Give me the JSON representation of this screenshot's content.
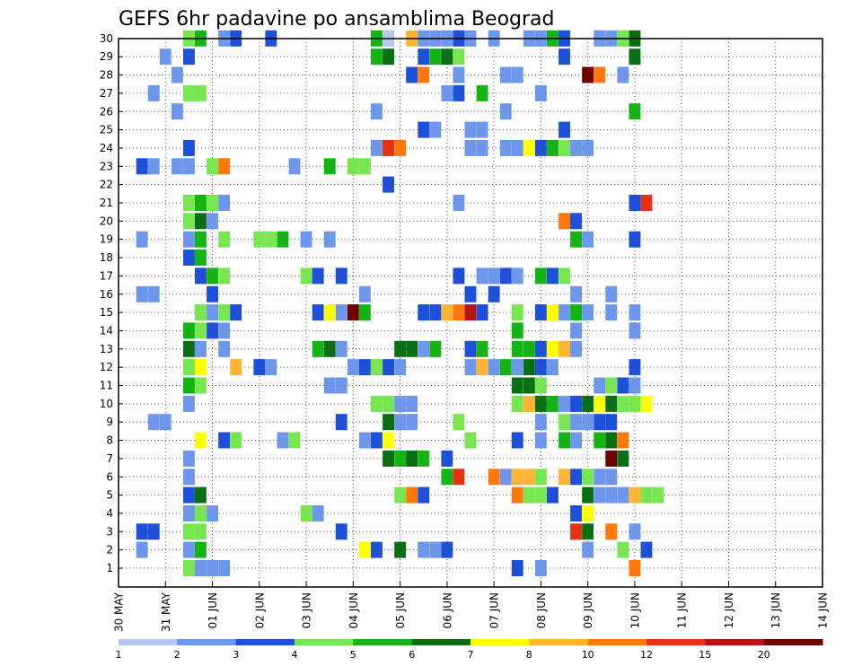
{
  "chart_data": {
    "type": "heatmap",
    "title": "GEFS 6hr padavine po ansamblima Beograd",
    "xlabel": "",
    "ylabel": "",
    "y_ticks": [
      "1",
      "2",
      "3",
      "4",
      "5",
      "6",
      "7",
      "8",
      "9",
      "10",
      "11",
      "12",
      "13",
      "14",
      "15",
      "16",
      "17",
      "18",
      "19",
      "20",
      "21",
      "22",
      "23",
      "24",
      "25",
      "26",
      "27",
      "28",
      "29",
      "30"
    ],
    "x_tick_labels": [
      "30 MAY",
      "31 MAY",
      "01 JUN",
      "02 JUN",
      "03 JUN",
      "04 JUN",
      "05 JUN",
      "06 JUN",
      "07 JUN",
      "08 JUN",
      "09 JUN",
      "10 JUN",
      "11 JUN",
      "12 JUN",
      "13 JUN",
      "14 JUN"
    ],
    "x_steps_per_day": 4,
    "x_total_steps": 61,
    "ylim": [
      1,
      30
    ],
    "grid": "dotted",
    "colorbar": {
      "labels": [
        "1",
        "2",
        "3",
        "4",
        "5",
        "6",
        "7",
        "8",
        "10",
        "12",
        "15",
        "20"
      ],
      "colors": [
        "#b4c8f0",
        "#6e96eb",
        "#1e50d7",
        "#78e650",
        "#14b414",
        "#0a6e14",
        "#ffff00",
        "#ffb432",
        "#ff780a",
        "#e63214",
        "#b41414",
        "#6e0000"
      ]
    },
    "cells": [
      [
        3,
        30,
        3
      ],
      [
        4,
        30,
        4
      ],
      [
        6,
        30,
        1
      ],
      [
        7,
        30,
        2
      ],
      [
        10,
        30,
        2
      ],
      [
        19,
        30,
        4
      ],
      [
        20,
        30,
        0
      ],
      [
        22,
        30,
        7
      ],
      [
        23,
        30,
        1
      ],
      [
        24,
        30,
        1
      ],
      [
        25,
        30,
        1
      ],
      [
        26,
        30,
        2
      ],
      [
        27,
        30,
        1
      ],
      [
        29,
        30,
        1
      ],
      [
        32,
        30,
        1
      ],
      [
        33,
        30,
        1
      ],
      [
        34,
        30,
        4
      ],
      [
        35,
        30,
        2
      ],
      [
        38,
        30,
        1
      ],
      [
        39,
        30,
        1
      ],
      [
        40,
        30,
        3
      ],
      [
        41,
        30,
        5
      ],
      [
        1,
        29,
        1
      ],
      [
        3,
        29,
        2
      ],
      [
        19,
        29,
        4
      ],
      [
        20,
        29,
        5
      ],
      [
        23,
        29,
        2
      ],
      [
        24,
        29,
        4
      ],
      [
        25,
        29,
        5
      ],
      [
        26,
        29,
        3
      ],
      [
        35,
        29,
        2
      ],
      [
        41,
        29,
        5
      ],
      [
        2,
        28,
        1
      ],
      [
        22,
        28,
        2
      ],
      [
        23,
        28,
        8
      ],
      [
        26,
        28,
        1
      ],
      [
        30,
        28,
        1
      ],
      [
        31,
        28,
        1
      ],
      [
        37,
        28,
        11
      ],
      [
        38,
        28,
        8
      ],
      [
        40,
        28,
        1
      ],
      [
        0,
        27,
        1
      ],
      [
        3,
        27,
        3
      ],
      [
        4,
        27,
        3
      ],
      [
        25,
        27,
        1
      ],
      [
        26,
        27,
        2
      ],
      [
        28,
        27,
        4
      ],
      [
        33,
        27,
        1
      ],
      [
        2,
        26,
        1
      ],
      [
        19,
        26,
        1
      ],
      [
        30,
        26,
        1
      ],
      [
        41,
        26,
        4
      ],
      [
        23,
        25,
        2
      ],
      [
        24,
        25,
        1
      ],
      [
        27,
        25,
        1
      ],
      [
        28,
        25,
        1
      ],
      [
        35,
        25,
        2
      ],
      [
        3,
        24,
        2
      ],
      [
        19,
        24,
        1
      ],
      [
        20,
        24,
        9
      ],
      [
        21,
        24,
        8
      ],
      [
        27,
        24,
        1
      ],
      [
        28,
        24,
        1
      ],
      [
        30,
        24,
        1
      ],
      [
        31,
        24,
        1
      ],
      [
        32,
        24,
        6
      ],
      [
        33,
        24,
        2
      ],
      [
        34,
        24,
        4
      ],
      [
        35,
        24,
        3
      ],
      [
        36,
        24,
        1
      ],
      [
        37,
        24,
        1
      ],
      [
        -1,
        23,
        2
      ],
      [
        0,
        23,
        1
      ],
      [
        2,
        23,
        1
      ],
      [
        3,
        23,
        1
      ],
      [
        5,
        23,
        3
      ],
      [
        6,
        23,
        8
      ],
      [
        12,
        23,
        1
      ],
      [
        15,
        23,
        4
      ],
      [
        17,
        23,
        3
      ],
      [
        18,
        23,
        3
      ],
      [
        20,
        22,
        2
      ],
      [
        3,
        21,
        3
      ],
      [
        4,
        21,
        4
      ],
      [
        5,
        21,
        3
      ],
      [
        6,
        21,
        1
      ],
      [
        26,
        21,
        1
      ],
      [
        41,
        21,
        2
      ],
      [
        42,
        21,
        9
      ],
      [
        3,
        20,
        3
      ],
      [
        4,
        20,
        5
      ],
      [
        5,
        20,
        1
      ],
      [
        35,
        20,
        8
      ],
      [
        36,
        20,
        2
      ],
      [
        -1,
        19,
        1
      ],
      [
        3,
        19,
        1
      ],
      [
        4,
        19,
        4
      ],
      [
        6,
        19,
        3
      ],
      [
        9,
        19,
        3
      ],
      [
        10,
        19,
        3
      ],
      [
        11,
        19,
        4
      ],
      [
        13,
        19,
        1
      ],
      [
        15,
        19,
        1
      ],
      [
        36,
        19,
        4
      ],
      [
        37,
        19,
        1
      ],
      [
        41,
        19,
        2
      ],
      [
        3,
        18,
        2
      ],
      [
        4,
        18,
        4
      ],
      [
        4,
        17,
        2
      ],
      [
        5,
        17,
        4
      ],
      [
        6,
        17,
        3
      ],
      [
        13,
        17,
        3
      ],
      [
        14,
        17,
        2
      ],
      [
        16,
        17,
        2
      ],
      [
        26,
        17,
        2
      ],
      [
        28,
        17,
        1
      ],
      [
        29,
        17,
        1
      ],
      [
        30,
        17,
        2
      ],
      [
        31,
        17,
        1
      ],
      [
        33,
        17,
        4
      ],
      [
        34,
        17,
        2
      ],
      [
        35,
        17,
        3
      ],
      [
        -1,
        16,
        1
      ],
      [
        0,
        16,
        1
      ],
      [
        5,
        16,
        2
      ],
      [
        18,
        16,
        1
      ],
      [
        27,
        16,
        2
      ],
      [
        29,
        16,
        2
      ],
      [
        36,
        16,
        1
      ],
      [
        39,
        16,
        1
      ],
      [
        4,
        15,
        3
      ],
      [
        5,
        15,
        1
      ],
      [
        6,
        15,
        3
      ],
      [
        7,
        15,
        2
      ],
      [
        14,
        15,
        2
      ],
      [
        15,
        15,
        6
      ],
      [
        16,
        15,
        1
      ],
      [
        17,
        15,
        11
      ],
      [
        18,
        15,
        4
      ],
      [
        23,
        15,
        2
      ],
      [
        24,
        15,
        2
      ],
      [
        25,
        15,
        7
      ],
      [
        26,
        15,
        8
      ],
      [
        27,
        15,
        10
      ],
      [
        28,
        15,
        2
      ],
      [
        31,
        15,
        3
      ],
      [
        33,
        15,
        2
      ],
      [
        34,
        15,
        6
      ],
      [
        35,
        15,
        1
      ],
      [
        36,
        15,
        4
      ],
      [
        37,
        15,
        1
      ],
      [
        39,
        15,
        1
      ],
      [
        41,
        15,
        1
      ],
      [
        3,
        14,
        4
      ],
      [
        4,
        14,
        3
      ],
      [
        5,
        14,
        2
      ],
      [
        6,
        14,
        1
      ],
      [
        31,
        14,
        4
      ],
      [
        36,
        14,
        1
      ],
      [
        41,
        14,
        1
      ],
      [
        3,
        13,
        5
      ],
      [
        4,
        13,
        1
      ],
      [
        6,
        13,
        1
      ],
      [
        14,
        13,
        4
      ],
      [
        15,
        13,
        5
      ],
      [
        16,
        13,
        1
      ],
      [
        21,
        13,
        5
      ],
      [
        22,
        13,
        5
      ],
      [
        23,
        13,
        1
      ],
      [
        24,
        13,
        4
      ],
      [
        27,
        13,
        2
      ],
      [
        28,
        13,
        4
      ],
      [
        31,
        13,
        4
      ],
      [
        32,
        13,
        4
      ],
      [
        33,
        13,
        2
      ],
      [
        34,
        13,
        6
      ],
      [
        35,
        13,
        7
      ],
      [
        36,
        13,
        1
      ],
      [
        3,
        12,
        3
      ],
      [
        4,
        12,
        6
      ],
      [
        7,
        12,
        7
      ],
      [
        9,
        12,
        2
      ],
      [
        10,
        12,
        1
      ],
      [
        17,
        12,
        1
      ],
      [
        18,
        12,
        2
      ],
      [
        19,
        12,
        3
      ],
      [
        20,
        12,
        2
      ],
      [
        21,
        12,
        1
      ],
      [
        27,
        12,
        1
      ],
      [
        28,
        12,
        7
      ],
      [
        29,
        12,
        1
      ],
      [
        30,
        12,
        4
      ],
      [
        31,
        12,
        1
      ],
      [
        32,
        12,
        5
      ],
      [
        33,
        12,
        2
      ],
      [
        34,
        12,
        1
      ],
      [
        41,
        12,
        2
      ],
      [
        3,
        11,
        4
      ],
      [
        4,
        11,
        3
      ],
      [
        15,
        11,
        1
      ],
      [
        16,
        11,
        1
      ],
      [
        31,
        11,
        5
      ],
      [
        32,
        11,
        5
      ],
      [
        33,
        11,
        3
      ],
      [
        38,
        11,
        1
      ],
      [
        39,
        11,
        3
      ],
      [
        40,
        11,
        2
      ],
      [
        41,
        11,
        1
      ],
      [
        3,
        10,
        1
      ],
      [
        19,
        10,
        3
      ],
      [
        20,
        10,
        3
      ],
      [
        21,
        10,
        1
      ],
      [
        22,
        10,
        1
      ],
      [
        31,
        10,
        3
      ],
      [
        32,
        10,
        7
      ],
      [
        33,
        10,
        5
      ],
      [
        34,
        10,
        4
      ],
      [
        35,
        10,
        1
      ],
      [
        36,
        10,
        2
      ],
      [
        37,
        10,
        5
      ],
      [
        38,
        10,
        6
      ],
      [
        39,
        10,
        5
      ],
      [
        40,
        10,
        3
      ],
      [
        41,
        10,
        3
      ],
      [
        42,
        10,
        6
      ],
      [
        0,
        9,
        1
      ],
      [
        1,
        9,
        1
      ],
      [
        16,
        9,
        2
      ],
      [
        20,
        9,
        5
      ],
      [
        21,
        9,
        1
      ],
      [
        22,
        9,
        1
      ],
      [
        26,
        9,
        3
      ],
      [
        33,
        9,
        1
      ],
      [
        35,
        9,
        3
      ],
      [
        36,
        9,
        1
      ],
      [
        37,
        9,
        1
      ],
      [
        38,
        9,
        2
      ],
      [
        39,
        9,
        2
      ],
      [
        4,
        8,
        6
      ],
      [
        6,
        8,
        2
      ],
      [
        7,
        8,
        3
      ],
      [
        11,
        8,
        1
      ],
      [
        12,
        8,
        3
      ],
      [
        18,
        8,
        1
      ],
      [
        19,
        8,
        2
      ],
      [
        20,
        8,
        6
      ],
      [
        27,
        8,
        3
      ],
      [
        31,
        8,
        2
      ],
      [
        33,
        8,
        1
      ],
      [
        35,
        8,
        4
      ],
      [
        36,
        8,
        1
      ],
      [
        38,
        8,
        4
      ],
      [
        39,
        8,
        5
      ],
      [
        40,
        8,
        8
      ],
      [
        3,
        7,
        1
      ],
      [
        20,
        7,
        5
      ],
      [
        21,
        7,
        4
      ],
      [
        22,
        7,
        5
      ],
      [
        23,
        7,
        4
      ],
      [
        25,
        7,
        2
      ],
      [
        39,
        7,
        11
      ],
      [
        40,
        7,
        5
      ],
      [
        3,
        6,
        1
      ],
      [
        25,
        6,
        4
      ],
      [
        26,
        6,
        9
      ],
      [
        29,
        6,
        8
      ],
      [
        30,
        6,
        1
      ],
      [
        31,
        6,
        7
      ],
      [
        32,
        6,
        7
      ],
      [
        33,
        6,
        3
      ],
      [
        35,
        6,
        7
      ],
      [
        36,
        6,
        2
      ],
      [
        37,
        6,
        3
      ],
      [
        38,
        6,
        1
      ],
      [
        39,
        6,
        1
      ],
      [
        3,
        5,
        2
      ],
      [
        4,
        5,
        5
      ],
      [
        21,
        5,
        3
      ],
      [
        22,
        5,
        8
      ],
      [
        23,
        5,
        2
      ],
      [
        31,
        5,
        8
      ],
      [
        32,
        5,
        3
      ],
      [
        33,
        5,
        3
      ],
      [
        34,
        5,
        2
      ],
      [
        37,
        5,
        5
      ],
      [
        38,
        5,
        1
      ],
      [
        39,
        5,
        1
      ],
      [
        40,
        5,
        1
      ],
      [
        41,
        5,
        7
      ],
      [
        42,
        5,
        3
      ],
      [
        43,
        5,
        3
      ],
      [
        3,
        4,
        1
      ],
      [
        4,
        4,
        3
      ],
      [
        5,
        4,
        1
      ],
      [
        13,
        4,
        3
      ],
      [
        14,
        4,
        1
      ],
      [
        36,
        4,
        2
      ],
      [
        37,
        4,
        6
      ],
      [
        -1,
        3,
        2
      ],
      [
        0,
        3,
        2
      ],
      [
        3,
        3,
        3
      ],
      [
        4,
        3,
        3
      ],
      [
        16,
        3,
        2
      ],
      [
        36,
        3,
        9
      ],
      [
        37,
        3,
        5
      ],
      [
        39,
        3,
        8
      ],
      [
        41,
        3,
        1
      ],
      [
        -1,
        2,
        1
      ],
      [
        3,
        2,
        1
      ],
      [
        4,
        2,
        4
      ],
      [
        18,
        2,
        6
      ],
      [
        19,
        2,
        2
      ],
      [
        21,
        2,
        5
      ],
      [
        23,
        2,
        1
      ],
      [
        24,
        2,
        1
      ],
      [
        25,
        2,
        2
      ],
      [
        37,
        2,
        1
      ],
      [
        40,
        2,
        3
      ],
      [
        42,
        2,
        2
      ],
      [
        3,
        1,
        3
      ],
      [
        4,
        1,
        1
      ],
      [
        5,
        1,
        1
      ],
      [
        6,
        1,
        1
      ],
      [
        31,
        1,
        2
      ],
      [
        33,
        1,
        1
      ],
      [
        41,
        1,
        8
      ]
    ]
  }
}
